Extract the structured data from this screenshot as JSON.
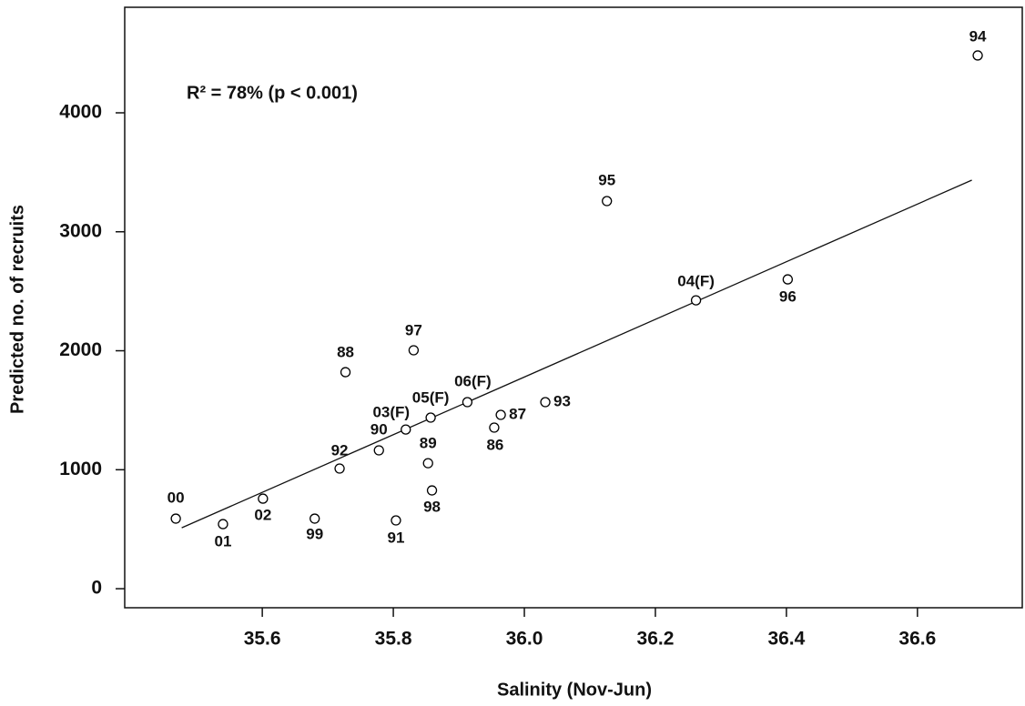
{
  "chart_data": {
    "type": "scatter",
    "xlabel": "Salinity (Nov-Jun)",
    "ylabel": "Predicted no. of recruits",
    "annotation": "R² = 78% (p < 0.001)",
    "point_labels": [
      "00",
      "01",
      "02",
      "99",
      "91",
      "92",
      "90",
      "03(F)",
      "89",
      "98",
      "05(F)",
      "97",
      "88",
      "06(F)",
      "86",
      "87",
      "93",
      "95",
      "04(F)",
      "96",
      "94"
    ],
    "x": [
      35.468,
      35.54,
      35.601,
      35.68,
      35.804,
      35.718,
      35.778,
      35.819,
      35.853,
      35.859,
      35.857,
      35.831,
      35.727,
      35.913,
      35.954,
      35.964,
      36.032,
      36.126,
      36.262,
      36.402,
      36.692
    ],
    "y": [
      589,
      543,
      757,
      589,
      574,
      1010,
      1163,
      1338,
      1055,
      826,
      1438,
      2004,
      1820,
      1568,
      1354,
      1461,
      1568,
      3258,
      2424,
      2600,
      4482
    ],
    "color": "#000000",
    "fit_line": {
      "x": [
        35.477,
        36.683
      ],
      "y": [
        512,
        3434
      ]
    },
    "xlim": [
      35.39,
      36.76
    ],
    "ylim": [
      -160,
      4887
    ],
    "xticks": [
      35.6,
      35.8,
      {
        "value": 36,
        "label": "36.0"
      },
      36.2,
      36.4,
      36.6
    ],
    "yticks": [
      0,
      1000,
      2000,
      3000,
      4000
    ]
  }
}
